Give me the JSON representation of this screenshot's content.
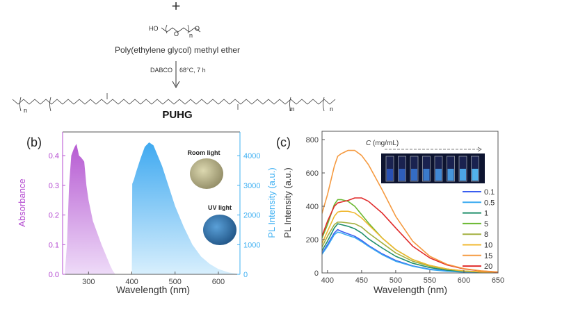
{
  "scheme": {
    "plus": "+",
    "reagent_label": "Poly(ethylene glycol) methyl ether",
    "reagent_atoms": {
      "ho": "HO",
      "o": "O",
      "n": "n"
    },
    "condition_left": "DABCO",
    "condition_right": "68°C, 7 h",
    "product_label": "PUHG",
    "product_subscripts": {
      "n": "n",
      "m": "m"
    }
  },
  "chart_data": [
    {
      "panel_label": "(b)",
      "type": "area",
      "xlabel": "Wavelength (nm)",
      "ylabel_left": "Absorbance",
      "ylabel_right": "PL Intensity (a.u.)",
      "xlim": [
        240,
        650
      ],
      "ylim_left": [
        0,
        0.48
      ],
      "ylim_right": [
        0,
        4800
      ],
      "x_ticks": [
        "300",
        "400",
        "500",
        "600"
      ],
      "y_ticks_left": [
        "0.0",
        "0.1",
        "0.2",
        "0.3",
        "0.4"
      ],
      "y_ticks_right": [
        "0",
        "1000",
        "2000",
        "3000",
        "4000"
      ],
      "colors": {
        "absorbance": "#b44ad0",
        "pl": "#3fb0f2"
      },
      "series": [
        {
          "axis": "left",
          "x": [
            245,
            250,
            255,
            260,
            265,
            268,
            272,
            275,
            278,
            282,
            285,
            290,
            295,
            300,
            310,
            320,
            330,
            340,
            350,
            356,
            362
          ],
          "y": [
            0,
            0.1,
            0.3,
            0.4,
            0.42,
            0.43,
            0.44,
            0.42,
            0.4,
            0.395,
            0.39,
            0.38,
            0.3,
            0.25,
            0.18,
            0.14,
            0.1,
            0.065,
            0.03,
            0.012,
            0
          ]
        },
        {
          "axis": "right",
          "x": [
            400,
            401,
            405,
            410,
            420,
            430,
            440,
            450,
            460,
            470,
            480,
            490,
            500,
            520,
            540,
            560,
            580,
            600,
            625,
            650
          ],
          "y": [
            0,
            3050,
            3200,
            3450,
            3900,
            4300,
            4450,
            4350,
            4000,
            3650,
            3200,
            2750,
            2300,
            1600,
            1000,
            600,
            350,
            180,
            60,
            10
          ]
        }
      ],
      "insets": [
        {
          "label": "Room light",
          "photo_color": "#c8c49a"
        },
        {
          "label": "UV light",
          "photo_color": "#3b86c4"
        }
      ]
    },
    {
      "panel_label": "(c)",
      "type": "line",
      "xlabel": "Wavelength (nm)",
      "ylabel": "PL Intensity (a.u.)",
      "xlim": [
        392,
        650
      ],
      "ylim": [
        0,
        850
      ],
      "x_ticks": [
        "400",
        "450",
        "500",
        "550",
        "600",
        "650"
      ],
      "y_ticks": [
        "0",
        "200",
        "400",
        "600",
        "800"
      ],
      "legend_position": "right",
      "inset_label_italic": "C",
      "inset_label": " (mg/mL)",
      "x": [
        390,
        400,
        410,
        415,
        420,
        430,
        440,
        450,
        460,
        480,
        500,
        525,
        550,
        575,
        600,
        625,
        650
      ],
      "series": [
        {
          "name": "0.1",
          "color": "#3a5ef0",
          "values": [
            105,
            170,
            240,
            260,
            250,
            235,
            220,
            195,
            165,
            115,
            75,
            42,
            22,
            12,
            6,
            3,
            2
          ]
        },
        {
          "name": "0.5",
          "color": "#3aaaf0",
          "values": [
            100,
            160,
            230,
            245,
            240,
            225,
            212,
            188,
            160,
            110,
            70,
            40,
            20,
            10,
            5,
            3,
            2
          ]
        },
        {
          "name": "1",
          "color": "#1f8f6a",
          "values": [
            120,
            190,
            270,
            295,
            290,
            280,
            265,
            240,
            205,
            150,
            100,
            58,
            32,
            17,
            9,
            5,
            3
          ]
        },
        {
          "name": "5",
          "color": "#6ab830",
          "values": [
            190,
            290,
            410,
            440,
            440,
            430,
            400,
            350,
            300,
            210,
            140,
            80,
            45,
            24,
            12,
            6,
            3
          ]
        },
        {
          "name": "8",
          "color": "#a4b040",
          "values": [
            140,
            220,
            290,
            305,
            305,
            300,
            295,
            275,
            240,
            180,
            120,
            70,
            40,
            22,
            11,
            6,
            3
          ]
        },
        {
          "name": "10",
          "color": "#f0b830",
          "values": [
            160,
            250,
            340,
            365,
            370,
            370,
            360,
            330,
            290,
            210,
            140,
            80,
            45,
            24,
            12,
            6,
            3
          ]
        },
        {
          "name": "15",
          "color": "#f59a40",
          "values": [
            330,
            470,
            640,
            700,
            715,
            735,
            735,
            705,
            650,
            500,
            340,
            190,
            100,
            52,
            26,
            13,
            6
          ]
        },
        {
          "name": "20",
          "color": "#e02a2a",
          "values": [
            200,
            310,
            400,
            420,
            425,
            435,
            450,
            450,
            430,
            360,
            270,
            160,
            90,
            48,
            24,
            12,
            5
          ]
        }
      ]
    }
  ]
}
